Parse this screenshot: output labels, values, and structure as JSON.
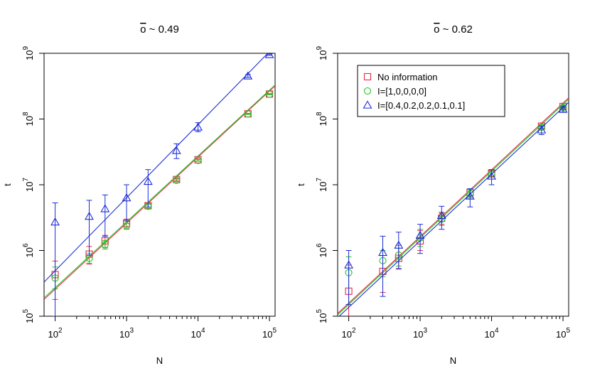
{
  "chart_data": [
    {
      "type": "scatter",
      "title": "o ~ 0.49",
      "xlabel": "N",
      "ylabel": "t",
      "x_scale": "log",
      "y_scale": "log",
      "xlim": [
        70,
        120000
      ],
      "ylim": [
        100000,
        1000000000
      ],
      "x_ticks": [
        {
          "value": 100,
          "base": "10",
          "exp": "2"
        },
        {
          "value": 1000,
          "base": "10",
          "exp": "3"
        },
        {
          "value": 10000,
          "base": "10",
          "exp": "4"
        },
        {
          "value": 100000,
          "base": "10",
          "exp": "5"
        }
      ],
      "y_ticks": [
        {
          "value": 100000,
          "base": "10",
          "exp": "5"
        },
        {
          "value": 1000000,
          "base": "10",
          "exp": "6"
        },
        {
          "value": 10000000,
          "base": "10",
          "exp": "7"
        },
        {
          "value": 100000000,
          "base": "10",
          "exp": "8"
        },
        {
          "value": 1000000000,
          "base": "10",
          "exp": "9"
        }
      ],
      "x": [
        100,
        300,
        500,
        1000,
        2000,
        5000,
        10000,
        50000,
        100000
      ],
      "grid": false,
      "legend": null,
      "series": [
        {
          "color": "#e8294b",
          "marker": "square",
          "y": [
            430000,
            880000,
            1400000,
            2600000,
            4800000,
            12000000,
            24000000,
            120000000,
            240000000
          ],
          "err_low": [
            180000,
            620000,
            1100000,
            2200000,
            4400000,
            11500000,
            23000000,
            118000000,
            236000000
          ],
          "err_high": [
            690000,
            1150000,
            1700000,
            3000000,
            5200000,
            12500000,
            25000000,
            122000000,
            244000000
          ],
          "fit": [
            [
              70,
              180000
            ],
            [
              120000,
              320000000
            ]
          ]
        },
        {
          "color": "#22c822",
          "marker": "circle",
          "y": [
            380000,
            760000,
            1230000,
            2350000,
            4700000,
            11700000,
            23500000,
            119000000,
            238000000
          ],
          "err_low": [
            260000,
            640000,
            1050000,
            2100000,
            4400000,
            11200000,
            22800000,
            117000000,
            234000000
          ],
          "err_high": [
            560000,
            900000,
            1420000,
            2600000,
            5000000,
            12200000,
            24200000,
            121000000,
            242000000
          ],
          "fit": [
            [
              70,
              190000
            ],
            [
              120000,
              330000000
            ]
          ]
        },
        {
          "color": "#1c2ed6",
          "marker": "triangle",
          "y": [
            2700000,
            3300000,
            4300000,
            6300000,
            11200000,
            33000000,
            75000000,
            450000000,
            950000000
          ],
          "err_low": [
            100000,
            850000,
            1650000,
            2800000,
            4600000,
            25000000,
            64000000,
            430000000,
            930000000
          ],
          "err_high": [
            5300000,
            5800000,
            7000000,
            10000000,
            17000000,
            42000000,
            88000000,
            475000000,
            975000000
          ],
          "fit": [
            [
              70,
              330000
            ],
            [
              120000,
              1300000000
            ]
          ]
        }
      ]
    },
    {
      "type": "scatter",
      "title": "o ~ 0.62",
      "xlabel": "N",
      "ylabel": "t",
      "x_scale": "log",
      "y_scale": "log",
      "xlim": [
        70,
        120000
      ],
      "ylim": [
        100000,
        1000000000
      ],
      "x_ticks": [
        {
          "value": 100,
          "base": "10",
          "exp": "2"
        },
        {
          "value": 1000,
          "base": "10",
          "exp": "3"
        },
        {
          "value": 10000,
          "base": "10",
          "exp": "4"
        },
        {
          "value": 100000,
          "base": "10",
          "exp": "5"
        }
      ],
      "y_ticks": [
        {
          "value": 100000,
          "base": "10",
          "exp": "5"
        },
        {
          "value": 1000000,
          "base": "10",
          "exp": "6"
        },
        {
          "value": 10000000,
          "base": "10",
          "exp": "7"
        },
        {
          "value": 100000000,
          "base": "10",
          "exp": "8"
        },
        {
          "value": 1000000000,
          "base": "10",
          "exp": "9"
        }
      ],
      "x": [
        100,
        300,
        500,
        1000,
        2000,
        5000,
        10000,
        50000,
        100000
      ],
      "grid": false,
      "legend": "top-left",
      "series": [
        {
          "name": "No information",
          "color": "#e8294b",
          "marker": "square",
          "y": [
            240000,
            480000,
            760000,
            1400000,
            3100000,
            7600000,
            15000000,
            78000000,
            155000000
          ],
          "err_low": [
            80000,
            230000,
            520000,
            1000000,
            2500000,
            6600000,
            13500000,
            73000000,
            148000000
          ],
          "err_high": [
            600000,
            1000000,
            1200000,
            2000000,
            3800000,
            8600000,
            16500000,
            83000000,
            162000000
          ],
          "fit": [
            [
              70,
              110000
            ],
            [
              120000,
              210000000
            ]
          ]
        },
        {
          "name": "I=[1,0,0,0,0]",
          "color": "#22c822",
          "marker": "circle",
          "y": [
            460000,
            700000,
            850000,
            1550000,
            3000000,
            7300000,
            14500000,
            75000000,
            150000000
          ],
          "err_low": [
            150000,
            400000,
            580000,
            1150000,
            2400000,
            6300000,
            13000000,
            70000000,
            143000000
          ],
          "err_high": [
            800000,
            1000000,
            1200000,
            2100000,
            3700000,
            8400000,
            16000000,
            80000000,
            157000000
          ],
          "fit": [
            [
              70,
              105000
            ],
            [
              120000,
              200000000
            ]
          ]
        },
        {
          "name": "I=[0.4,0.2,0.2,0.1,0.1]",
          "color": "#1c2ed6",
          "marker": "triangle",
          "y": [
            600000,
            930000,
            1200000,
            1700000,
            3400000,
            6700000,
            13500000,
            68000000,
            140000000
          ],
          "err_low": [
            150000,
            200000,
            530000,
            900000,
            2100000,
            4600000,
            10000000,
            58000000,
            128000000
          ],
          "err_high": [
            1000000,
            1650000,
            1900000,
            2500000,
            4700000,
            8700000,
            17000000,
            78000000,
            152000000
          ],
          "fit": [
            [
              70,
              95000
            ],
            [
              120000,
              180000000
            ]
          ]
        }
      ]
    }
  ]
}
